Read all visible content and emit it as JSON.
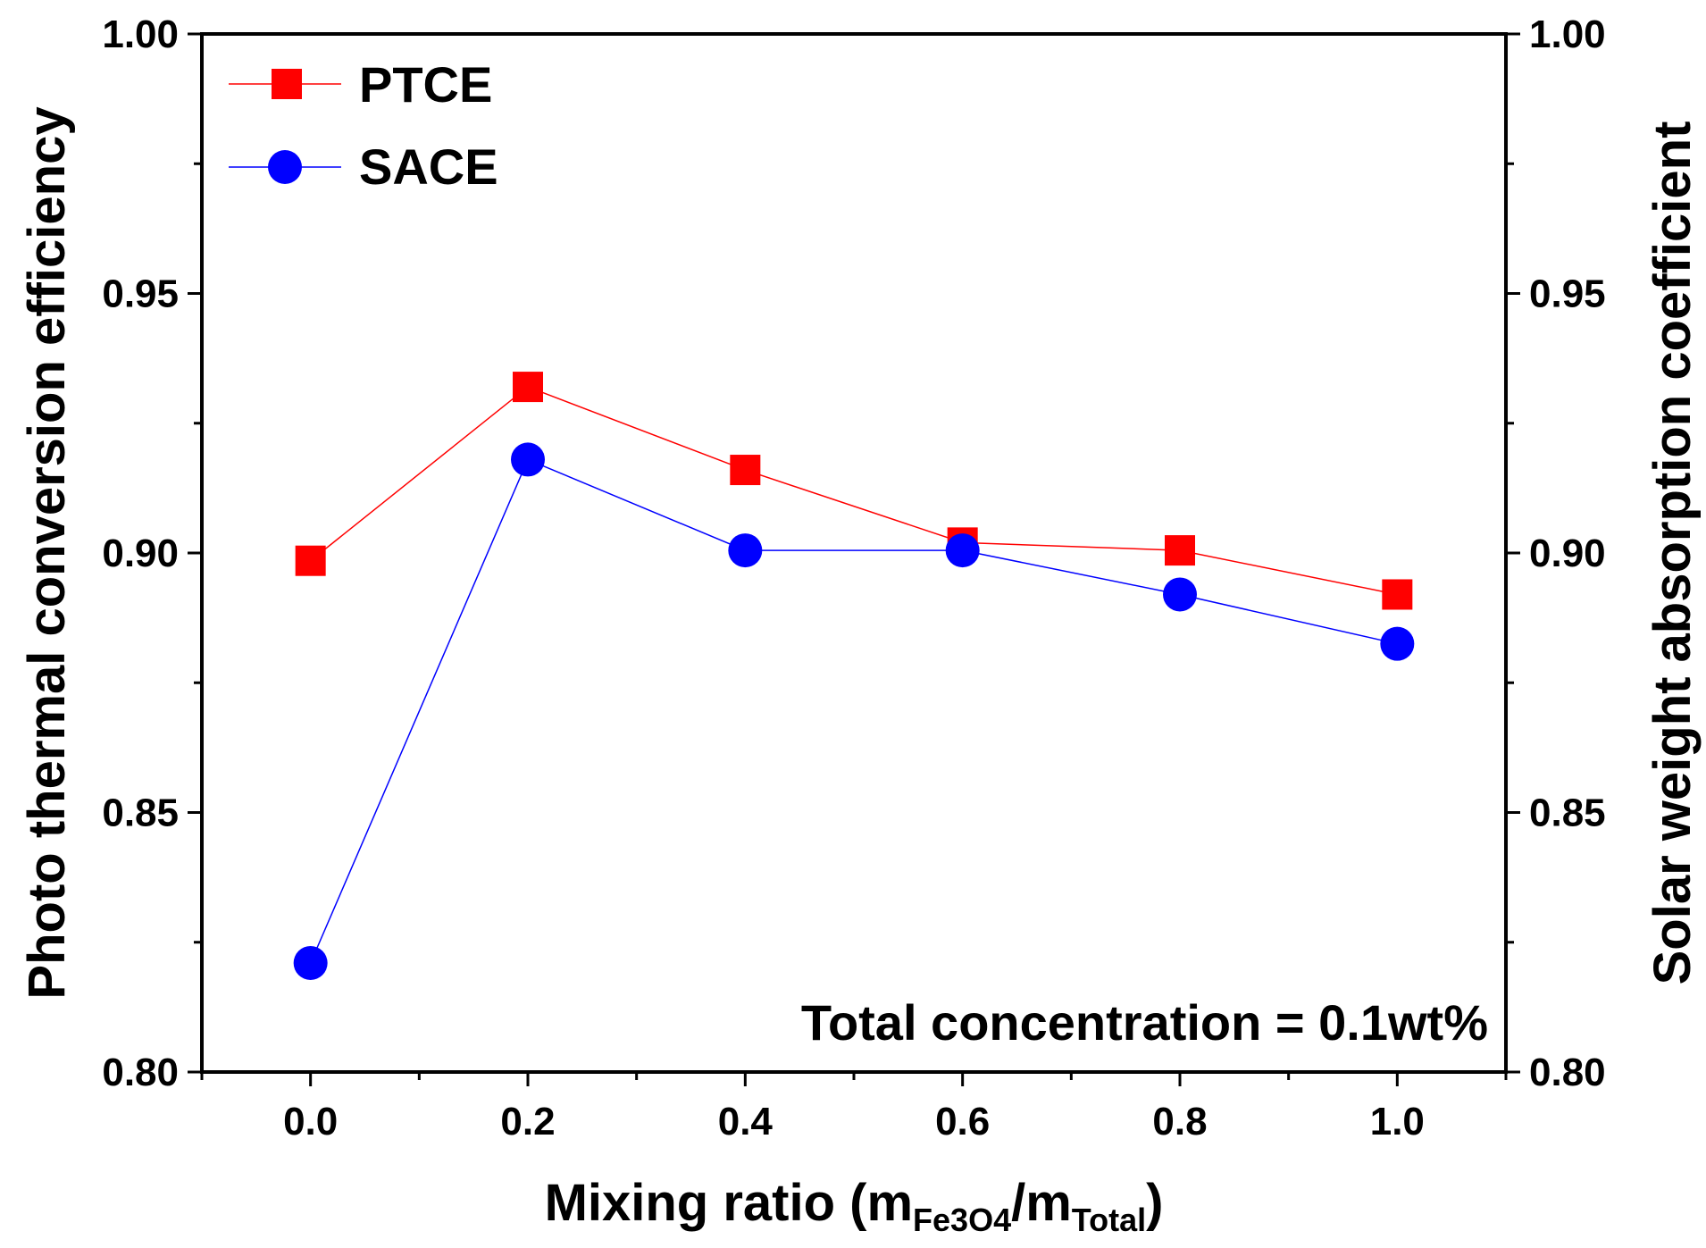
{
  "chart_data": {
    "type": "line",
    "x": [
      0.0,
      0.2,
      0.4,
      0.6,
      0.8,
      1.0
    ],
    "x_tick_labels": [
      "0.0",
      "0.2",
      "0.4",
      "0.6",
      "0.8",
      "1.0"
    ],
    "xlim": [
      -0.1,
      1.1
    ],
    "ylim": [
      0.8,
      1.0
    ],
    "y_left_tick_labels": [
      "0.80",
      "0.85",
      "0.90",
      "0.95",
      "1.00"
    ],
    "y_right_tick_labels": [
      "0.80",
      "0.85",
      "0.90",
      "0.95",
      "1.00"
    ],
    "y_ticks": [
      0.8,
      0.85,
      0.9,
      0.95,
      1.0
    ],
    "xlabel_main": "Mixing ratio (m",
    "xlabel_sub1": "Fe3O4",
    "xlabel_mid": "/m",
    "xlabel_sub2": "Total",
    "xlabel_end": ")",
    "ylabel_left": "Photo thermal conversion efficiency",
    "ylabel_right": "Solar weight absorption coefficient",
    "annotation": "Total concentration = 0.1wt%",
    "legend_position": "top-left",
    "series": [
      {
        "name": "PTCE",
        "marker": "square",
        "color": "#ff0000",
        "values": [
          0.8985,
          0.932,
          0.916,
          0.902,
          0.9005,
          0.892
        ]
      },
      {
        "name": "SACE",
        "marker": "circle",
        "color": "#0000ff",
        "values": [
          0.821,
          0.918,
          0.9005,
          0.9005,
          0.892,
          0.8825
        ]
      }
    ]
  }
}
